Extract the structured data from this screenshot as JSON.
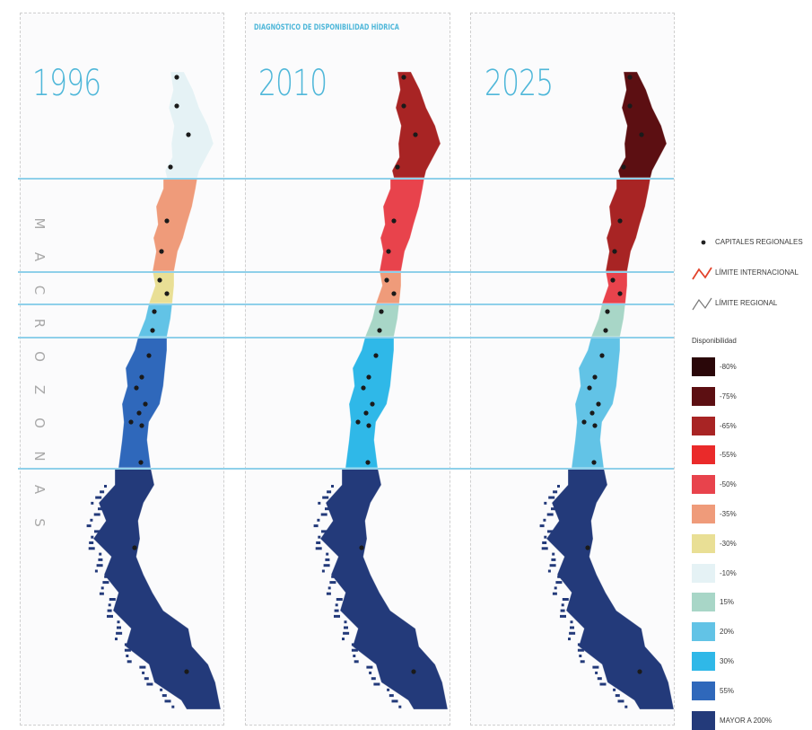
{
  "title": "DIAGNÓSTICO DE DISPONIBILIDAD HÍDRICA",
  "panels": [
    {
      "year": "1996",
      "zone_colors": [
        "#e5f2f5",
        "#ef9b7a",
        "#e9df95",
        "#62c3e6",
        "#2f68bb",
        "#233a7a"
      ]
    },
    {
      "year": "2010",
      "zone_colors": [
        "#a82424",
        "#e8434c",
        "#ef9b7a",
        "#a8d6c7",
        "#2fb8e8",
        "#233a7a"
      ]
    },
    {
      "year": "2025",
      "zone_colors": [
        "#5c0f12",
        "#a82424",
        "#e8434c",
        "#a8d6c7",
        "#62c3e6",
        "#233a7a"
      ]
    }
  ],
  "side_label": "MACROZONAS",
  "legend": {
    "capital_label": "CAPITALES REGIONALES",
    "international_label": "LÍMITE INTERNACIONAL",
    "regional_label": "LÍMITE REGIONAL",
    "availability_title": "Disponibilidad",
    "items": [
      {
        "label": "-80%",
        "color": "#2a0709"
      },
      {
        "label": "-75%",
        "color": "#5c0f12"
      },
      {
        "label": "-65%",
        "color": "#a82424"
      },
      {
        "label": "-55%",
        "color": "#ea2a2a"
      },
      {
        "label": "-50%",
        "color": "#e8434c"
      },
      {
        "label": "-35%",
        "color": "#ef9b7a"
      },
      {
        "label": "-30%",
        "color": "#e9df95"
      },
      {
        "label": "-10%",
        "color": "#e5f2f5"
      },
      {
        "label": "15%",
        "color": "#a8d6c7"
      },
      {
        "label": "20%",
        "color": "#62c3e6"
      },
      {
        "label": "30%",
        "color": "#2fb8e8"
      },
      {
        "label": "55%",
        "color": "#2f68bb"
      },
      {
        "label": "MAYOR A 200%",
        "color": "#233a7a"
      }
    ]
  }
}
